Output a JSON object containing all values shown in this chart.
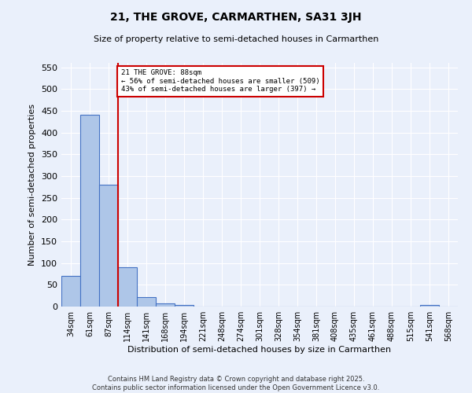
{
  "title": "21, THE GROVE, CARMARTHEN, SA31 3JH",
  "subtitle": "Size of property relative to semi-detached houses in Carmarthen",
  "xlabel": "Distribution of semi-detached houses by size in Carmarthen",
  "ylabel": "Number of semi-detached properties",
  "categories": [
    "34sqm",
    "61sqm",
    "87sqm",
    "114sqm",
    "141sqm",
    "168sqm",
    "194sqm",
    "221sqm",
    "248sqm",
    "274sqm",
    "301sqm",
    "328sqm",
    "354sqm",
    "381sqm",
    "408sqm",
    "435sqm",
    "461sqm",
    "488sqm",
    "515sqm",
    "541sqm",
    "568sqm"
  ],
  "values": [
    70,
    440,
    280,
    90,
    22,
    8,
    3,
    0,
    0,
    0,
    0,
    0,
    0,
    0,
    0,
    0,
    0,
    0,
    0,
    3,
    0
  ],
  "bar_color": "#aec6e8",
  "bar_edge_color": "#4472c4",
  "vline_color": "#cc0000",
  "annotation_box_color": "#cc0000",
  "ylim": [
    0,
    560
  ],
  "yticks": [
    0,
    50,
    100,
    150,
    200,
    250,
    300,
    350,
    400,
    450,
    500,
    550
  ],
  "background_color": "#eaf0fb",
  "grid_color": "#ffffff",
  "footer": "Contains HM Land Registry data © Crown copyright and database right 2025.\nContains public sector information licensed under the Open Government Licence v3.0."
}
